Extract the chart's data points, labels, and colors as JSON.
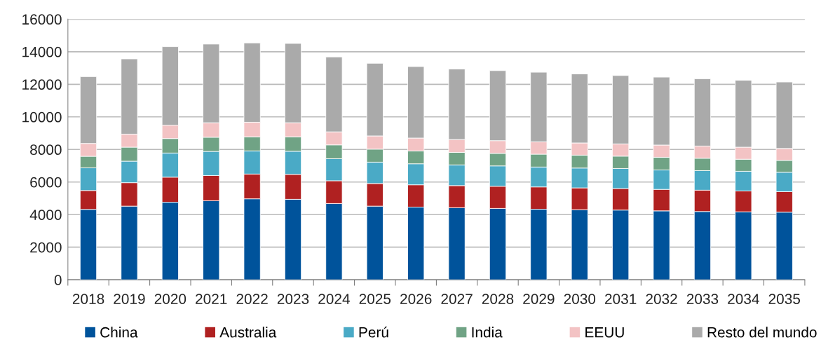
{
  "chart_data": {
    "type": "bar",
    "stacked": true,
    "categories": [
      "2018",
      "2019",
      "2020",
      "2021",
      "2022",
      "2023",
      "2024",
      "2025",
      "2026",
      "2027",
      "2028",
      "2029",
      "2030",
      "2031",
      "2032",
      "2033",
      "2034",
      "2035"
    ],
    "series": [
      {
        "name": "China",
        "color": "#00539b",
        "values": [
          4320,
          4520,
          4760,
          4850,
          4970,
          4940,
          4680,
          4520,
          4460,
          4420,
          4380,
          4330,
          4300,
          4280,
          4230,
          4190,
          4170,
          4150
        ]
      },
      {
        "name": "Australia",
        "color": "#b02121",
        "values": [
          1160,
          1440,
          1540,
          1550,
          1520,
          1530,
          1400,
          1390,
          1370,
          1360,
          1360,
          1370,
          1340,
          1320,
          1320,
          1310,
          1280,
          1260
        ]
      },
      {
        "name": "Perú",
        "color": "#4aaac6",
        "values": [
          1390,
          1320,
          1480,
          1480,
          1420,
          1420,
          1350,
          1310,
          1290,
          1270,
          1250,
          1220,
          1220,
          1230,
          1190,
          1200,
          1210,
          1190
        ]
      },
      {
        "name": "India",
        "color": "#70a385",
        "values": [
          710,
          860,
          890,
          870,
          870,
          890,
          850,
          800,
          790,
          770,
          770,
          790,
          790,
          760,
          780,
          760,
          740,
          730
        ]
      },
      {
        "name": "EEUU",
        "color": "#f3c3c4",
        "values": [
          790,
          800,
          820,
          890,
          890,
          860,
          800,
          810,
          790,
          790,
          780,
          760,
          750,
          750,
          750,
          750,
          740,
          730
        ]
      },
      {
        "name": "Resto del mundo",
        "color": "#aaaaaa",
        "values": [
          4100,
          4620,
          4820,
          4830,
          4870,
          4870,
          4600,
          4460,
          4390,
          4330,
          4300,
          4270,
          4240,
          4200,
          4170,
          4130,
          4110,
          4080
        ]
      }
    ],
    "ylim": [
      0,
      16000
    ],
    "yticks": [
      0,
      2000,
      4000,
      6000,
      8000,
      10000,
      12000,
      14000,
      16000
    ],
    "grid": "y",
    "legend": "bottom"
  }
}
